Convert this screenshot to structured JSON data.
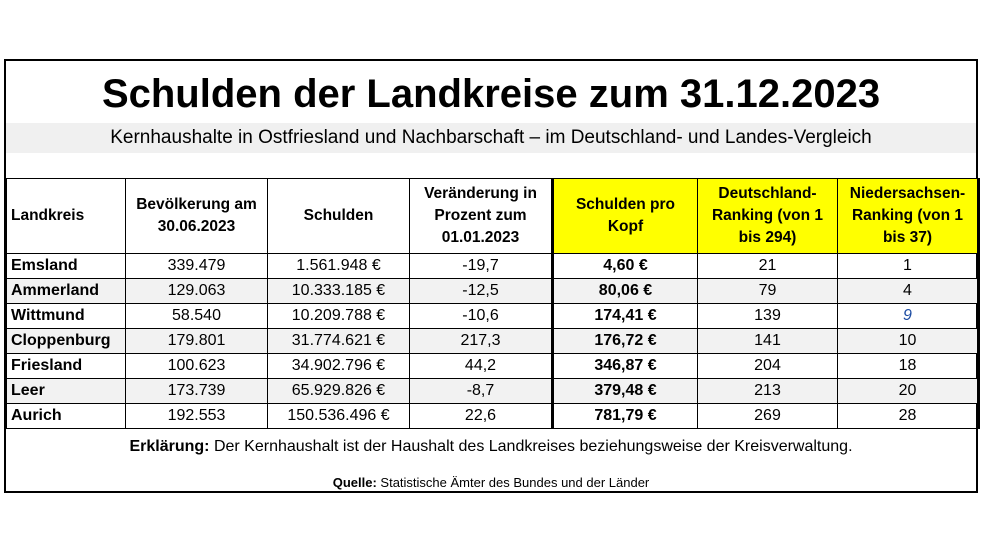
{
  "title": "Schulden der Landkreise zum 31.12.2023",
  "subtitle": "Kernhaushalte in Ostfriesland und Nachbarschaft – im Deutschland- und Landes-Vergleich",
  "columns": [
    "Landkreis",
    "Bevölkerung am 30.06.2023",
    "Schulden",
    "Veränderung in Prozent zum 01.01.2023",
    "Schulden pro Kopf",
    "Deutschland-Ranking (von 1 bis 294)",
    "Niedersachsen-Ranking (von 1 bis 37)"
  ],
  "rows": [
    {
      "name": "Emsland",
      "population": "339.479",
      "debt": "1.561.948 €",
      "change": "-19,7",
      "per_capita": "4,60 €",
      "rank_de": "21",
      "rank_ni": "1"
    },
    {
      "name": "Ammerland",
      "population": "129.063",
      "debt": "10.333.185 €",
      "change": "-12,5",
      "per_capita": "80,06 €",
      "rank_de": "79",
      "rank_ni": "4"
    },
    {
      "name": "Wittmund",
      "population": "58.540",
      "debt": "10.209.788 €",
      "change": "-10,6",
      "per_capita": "174,41 €",
      "rank_de": "139",
      "rank_ni": "9"
    },
    {
      "name": "Cloppenburg",
      "population": "179.801",
      "debt": "31.774.621 €",
      "change": "217,3",
      "per_capita": "176,72 €",
      "rank_de": "141",
      "rank_ni": "10"
    },
    {
      "name": "Friesland",
      "population": "100.623",
      "debt": "34.902.796 €",
      "change": "44,2",
      "per_capita": "346,87 €",
      "rank_de": "204",
      "rank_ni": "18"
    },
    {
      "name": "Leer",
      "population": "173.739",
      "debt": "65.929.826 €",
      "change": "-8,7",
      "per_capita": "379,48 €",
      "rank_de": "213",
      "rank_ni": "20"
    },
    {
      "name": "Aurich",
      "population": "192.553",
      "debt": "150.536.496 €",
      "change": "22,6",
      "per_capita": "781,79 €",
      "rank_de": "269",
      "rank_ni": "28"
    }
  ],
  "explanation": {
    "label": "Erklärung:",
    "text": " Der Kernhaushalt ist der Haushalt des Landkreises beziehungsweise der Kreisverwaltung."
  },
  "source": {
    "label": "Quelle:",
    "text": " Statistische Ämter des Bundes und der Länder"
  },
  "colors": {
    "highlight": "#ffff00",
    "row_alt": "#f2f2f2",
    "italic_value": "#1f4ea3"
  }
}
